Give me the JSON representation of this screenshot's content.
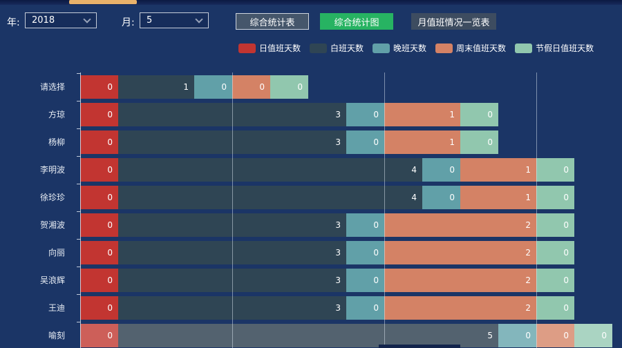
{
  "toolbar": {
    "year_label": "年:",
    "year_value": "2018",
    "month_label": "月:",
    "month_value": "5",
    "buttons": [
      {
        "label": "综合统计表",
        "active": false
      },
      {
        "label": "综合统计图",
        "active": true
      },
      {
        "label": "月值班情况一览表",
        "active": false
      }
    ]
  },
  "colors": {
    "background": "#1b3566",
    "active_button_green": "#27b362",
    "scrollbar_thumb": "#e9b26a"
  },
  "chart_data": {
    "type": "bar",
    "orientation": "horizontal",
    "stacked": true,
    "legend_position": "top-center",
    "grid": "vertical gridlines on",
    "categories": [
      "请选择",
      "方琼",
      "杨柳",
      "李明波",
      "徐珍珍",
      "贺湘波",
      "向丽",
      "吴浪辉",
      "王迪",
      "喻刻"
    ],
    "series": [
      {
        "name": "日值班天数",
        "color": "#c23531",
        "highlight_color": "#cd5f59",
        "values": [
          0,
          0,
          0,
          0,
          0,
          0,
          0,
          0,
          0,
          0
        ]
      },
      {
        "name": "白班天数",
        "color": "#2f4554",
        "highlight_color": "#53626f",
        "values": [
          1,
          3,
          3,
          4,
          4,
          3,
          3,
          3,
          3,
          5
        ]
      },
      {
        "name": "晚班天数",
        "color": "#61a0a8",
        "highlight_color": "#83b6bc",
        "values": [
          0,
          0,
          0,
          0,
          0,
          0,
          0,
          0,
          0,
          0
        ]
      },
      {
        "name": "周末值班天数",
        "color": "#d48265",
        "highlight_color": "#dd9d85",
        "values": [
          0,
          1,
          1,
          1,
          1,
          2,
          2,
          2,
          2,
          0
        ]
      },
      {
        "name": "节假日值班天数",
        "color": "#91c7ae",
        "highlight_color": "#aad4c2",
        "values": [
          0,
          0,
          0,
          0,
          0,
          0,
          0,
          0,
          0,
          0
        ]
      }
    ],
    "value_label_position": "inside-right of each segment",
    "highlighted_row_index": 9,
    "zero_segment_units": 0.5,
    "x_gridlines_units": [
      2,
      4,
      6
    ],
    "x_axis_visible_max": 7.1
  }
}
